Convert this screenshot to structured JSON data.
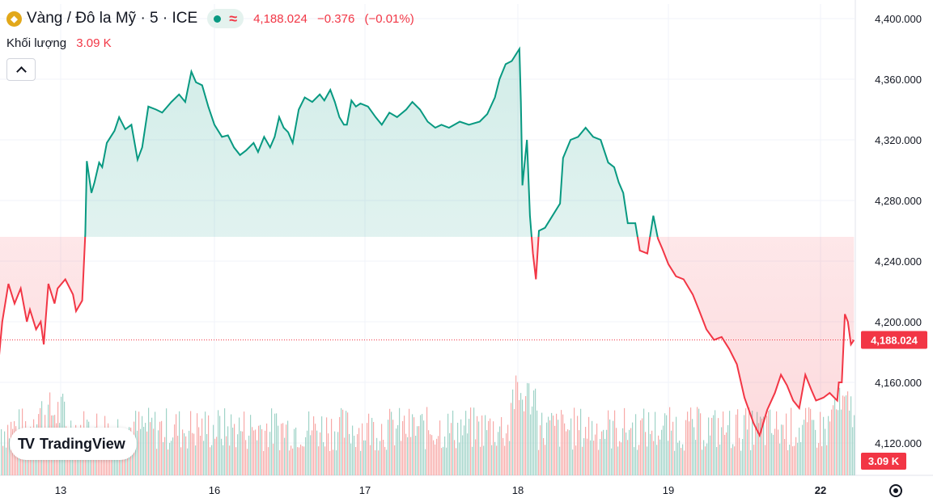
{
  "legend": {
    "title": "Vàng / Đô la Mỹ · 5 · ICE",
    "approx_symbol": "≈",
    "price": "4,188.024",
    "change": "−0.376",
    "change_pct": "(−0.01%)",
    "volume_label": "Khối lượng",
    "volume_value": "3.09 K"
  },
  "logo": {
    "text": "TradingView",
    "mark": "TV"
  },
  "colors": {
    "up": "#089981",
    "down": "#f23645",
    "up_fill": "#e4f2ee",
    "down_fill": "#fde6e8"
  },
  "chart_data": {
    "type": "area",
    "baseline": 4256,
    "ylim": [
      4098,
      4408
    ],
    "y_ticks": [
      "4,400.000",
      "4,360.000",
      "4,320.000",
      "4,280.000",
      "4,240.000",
      "4,200.000",
      "4,160.000",
      "4,120.000"
    ],
    "y_tick_values": [
      4400,
      4360,
      4320,
      4280,
      4240,
      4200,
      4160,
      4120
    ],
    "x_ticks": [
      "13",
      "16",
      "17",
      "18",
      "19",
      "22"
    ],
    "x_tick_values": [
      0.0,
      1.0,
      2.0,
      3.0,
      4.0,
      5.0
    ],
    "x_tick_bold": [
      false,
      false,
      false,
      false,
      false,
      true
    ],
    "xlim": [
      -0.4,
      5.22
    ],
    "current_price": 4188.024,
    "current_price_label": "4,188.024",
    "current_volume_label": "3.09 K",
    "price_series": [
      [
        -0.4,
        4178
      ],
      [
        -0.38,
        4200
      ],
      [
        -0.34,
        4225
      ],
      [
        -0.3,
        4212
      ],
      [
        -0.26,
        4222
      ],
      [
        -0.22,
        4200
      ],
      [
        -0.2,
        4208
      ],
      [
        -0.16,
        4195
      ],
      [
        -0.13,
        4200
      ],
      [
        -0.11,
        4185
      ],
      [
        -0.08,
        4225
      ],
      [
        -0.04,
        4212
      ],
      [
        -0.02,
        4222
      ],
      [
        0.03,
        4228
      ],
      [
        0.08,
        4218
      ],
      [
        0.1,
        4207
      ],
      [
        0.14,
        4214
      ],
      [
        0.16,
        4258
      ],
      [
        0.17,
        4306
      ],
      [
        0.2,
        4285
      ],
      [
        0.22,
        4292
      ],
      [
        0.25,
        4305
      ],
      [
        0.27,
        4302
      ],
      [
        0.3,
        4318
      ],
      [
        0.35,
        4326
      ],
      [
        0.38,
        4335
      ],
      [
        0.42,
        4327
      ],
      [
        0.46,
        4330
      ],
      [
        0.5,
        4307
      ],
      [
        0.53,
        4315
      ],
      [
        0.57,
        4342
      ],
      [
        0.62,
        4340
      ],
      [
        0.66,
        4338
      ],
      [
        0.72,
        4345
      ],
      [
        0.77,
        4350
      ],
      [
        0.81,
        4345
      ],
      [
        0.85,
        4365
      ],
      [
        0.88,
        4358
      ],
      [
        0.92,
        4356
      ],
      [
        0.96,
        4342
      ],
      [
        1.0,
        4330
      ],
      [
        1.05,
        4322
      ],
      [
        1.09,
        4323
      ],
      [
        1.13,
        4315
      ],
      [
        1.17,
        4310
      ],
      [
        1.21,
        4313
      ],
      [
        1.26,
        4318
      ],
      [
        1.29,
        4312
      ],
      [
        1.33,
        4322
      ],
      [
        1.37,
        4315
      ],
      [
        1.4,
        4322
      ],
      [
        1.43,
        4335
      ],
      [
        1.46,
        4328
      ],
      [
        1.49,
        4325
      ],
      [
        1.52,
        4318
      ],
      [
        1.56,
        4340
      ],
      [
        1.6,
        4348
      ],
      [
        1.65,
        4345
      ],
      [
        1.7,
        4350
      ],
      [
        1.73,
        4346
      ],
      [
        1.77,
        4353
      ],
      [
        1.8,
        4345
      ],
      [
        1.83,
        4335
      ],
      [
        1.86,
        4330
      ],
      [
        1.88,
        4330
      ],
      [
        1.91,
        4346
      ],
      [
        1.94,
        4342
      ],
      [
        1.97,
        4344
      ],
      [
        2.02,
        4342
      ],
      [
        2.07,
        4335
      ],
      [
        2.11,
        4330
      ],
      [
        2.16,
        4338
      ],
      [
        2.21,
        4335
      ],
      [
        2.27,
        4340
      ],
      [
        2.31,
        4345
      ],
      [
        2.36,
        4340
      ],
      [
        2.41,
        4332
      ],
      [
        2.46,
        4328
      ],
      [
        2.5,
        4330
      ],
      [
        2.55,
        4328
      ],
      [
        2.62,
        4332
      ],
      [
        2.68,
        4330
      ],
      [
        2.75,
        4332
      ],
      [
        2.8,
        4337
      ],
      [
        2.85,
        4348
      ],
      [
        2.88,
        4360
      ],
      [
        2.92,
        4370
      ],
      [
        2.96,
        4372
      ],
      [
        3.01,
        4380
      ],
      [
        3.02,
        4345
      ],
      [
        3.03,
        4290
      ],
      [
        3.06,
        4320
      ],
      [
        3.08,
        4270
      ],
      [
        3.1,
        4245
      ],
      [
        3.12,
        4228
      ],
      [
        3.14,
        4260
      ],
      [
        3.18,
        4262
      ],
      [
        3.23,
        4270
      ],
      [
        3.28,
        4278
      ],
      [
        3.3,
        4308
      ],
      [
        3.35,
        4320
      ],
      [
        3.4,
        4322
      ],
      [
        3.45,
        4328
      ],
      [
        3.5,
        4322
      ],
      [
        3.55,
        4320
      ],
      [
        3.6,
        4305
      ],
      [
        3.64,
        4302
      ],
      [
        3.67,
        4292
      ],
      [
        3.7,
        4285
      ],
      [
        3.73,
        4265
      ],
      [
        3.78,
        4265
      ],
      [
        3.81,
        4247
      ],
      [
        3.86,
        4245
      ],
      [
        3.9,
        4270
      ],
      [
        3.93,
        4255
      ],
      [
        3.96,
        4248
      ],
      [
        4.0,
        4238
      ],
      [
        4.05,
        4230
      ],
      [
        4.1,
        4228
      ],
      [
        4.16,
        4218
      ],
      [
        4.2,
        4208
      ],
      [
        4.25,
        4195
      ],
      [
        4.3,
        4188
      ],
      [
        4.35,
        4190
      ],
      [
        4.4,
        4182
      ],
      [
        4.45,
        4172
      ],
      [
        4.5,
        4150
      ],
      [
        4.56,
        4133
      ],
      [
        4.6,
        4125
      ],
      [
        4.65,
        4142
      ],
      [
        4.7,
        4153
      ],
      [
        4.74,
        4165
      ],
      [
        4.78,
        4158
      ],
      [
        4.82,
        4148
      ],
      [
        4.86,
        4143
      ],
      [
        4.9,
        4165
      ],
      [
        4.94,
        4155
      ],
      [
        4.97,
        4148
      ],
      [
        5.02,
        4150
      ],
      [
        5.06,
        4153
      ],
      [
        5.09,
        4150
      ],
      [
        5.11,
        4148
      ],
      [
        5.12,
        4160
      ],
      [
        5.14,
        4160
      ],
      [
        5.16,
        4205
      ],
      [
        5.18,
        4200
      ],
      [
        5.2,
        4185
      ],
      [
        5.22,
        4188
      ]
    ],
    "volume_series": {
      "description_note": "",
      "count": 0
    }
  }
}
